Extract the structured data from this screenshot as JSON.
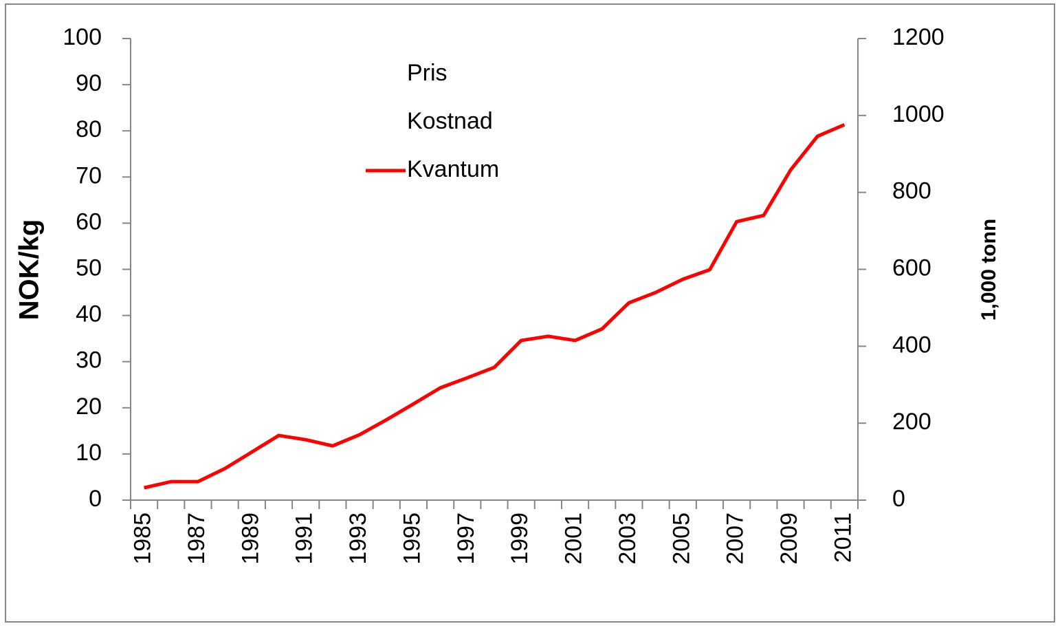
{
  "chart_data": {
    "type": "line",
    "y_label": "NOK/kg",
    "y2_label": "1,000 tonn",
    "categories": [
      "1985",
      null,
      "1987",
      null,
      "1989",
      null,
      "1991",
      null,
      "1993",
      null,
      "1995",
      null,
      "1997",
      null,
      "1999",
      null,
      "2001",
      null,
      "2003",
      null,
      "2005",
      null,
      "2007",
      null,
      "2009",
      null,
      "2011"
    ],
    "series": [
      {
        "name": "Pris",
        "values": [
          null,
          null,
          null,
          null,
          null,
          null,
          null,
          null,
          null,
          null,
          null,
          null,
          null,
          null,
          null,
          null,
          null,
          null,
          null,
          null,
          null,
          null,
          null,
          null,
          null,
          null,
          null
        ]
      },
      {
        "name": "Kostnad",
        "values": [
          null,
          null,
          null,
          null,
          null,
          null,
          null,
          null,
          null,
          null,
          null,
          null,
          null,
          null,
          null,
          null,
          null,
          null,
          null,
          null,
          null,
          null,
          null,
          null,
          null,
          null,
          null
        ]
      },
      {
        "name": "Kvantum",
        "color": "#ff0000",
        "axis": "y2",
        "values": [
          32,
          48,
          48,
          82,
          125,
          168,
          157,
          141,
          170,
          209,
          250,
          292,
          318,
          345,
          415,
          426,
          415,
          445,
          513,
          540,
          574,
          599,
          724,
          740,
          858,
          946,
          976
        ]
      }
    ],
    "ylim": [
      0,
      100
    ],
    "yticks": [
      0,
      10,
      20,
      30,
      40,
      50,
      60,
      70,
      80,
      90,
      100
    ],
    "y2lim": [
      0,
      1200
    ],
    "y2ticks": [
      0,
      200,
      400,
      600,
      800,
      1000,
      1200
    ],
    "legend": "top"
  }
}
